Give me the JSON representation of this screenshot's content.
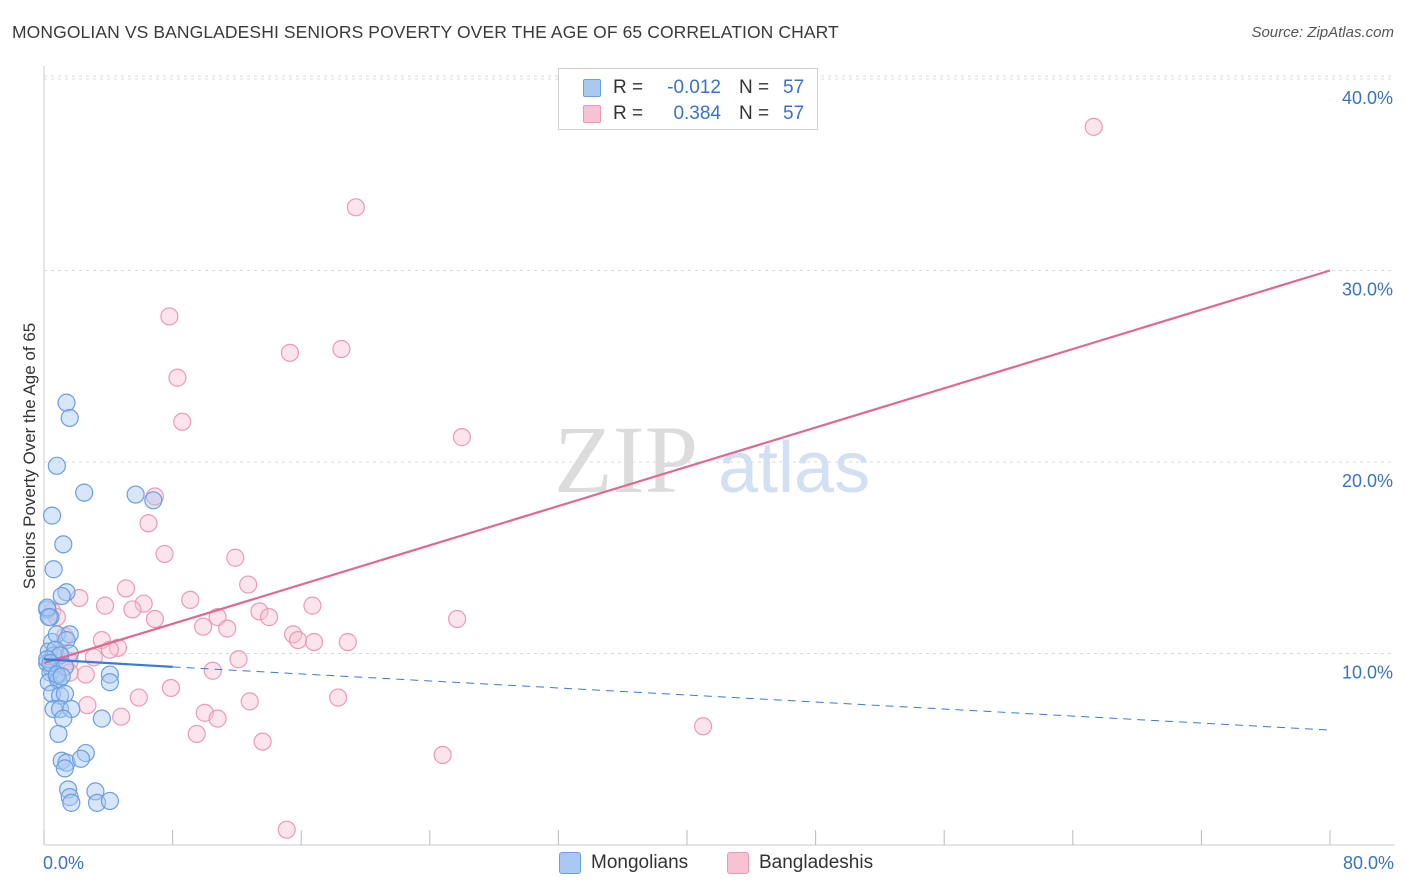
{
  "title": "MONGOLIAN VS BANGLADESHI SENIORS POVERTY OVER THE AGE OF 65 CORRELATION CHART",
  "source": "Source: ZipAtlas.com",
  "watermark": {
    "zip": "ZIP",
    "atlas": "atlas"
  },
  "colors": {
    "mongolian_fill": "#a9c8f2",
    "mongolian_stroke": "#6c9ee0",
    "mongolian_line": "#3a7bd5",
    "bangladeshi_fill": "#f7c3d2",
    "bangladeshi_stroke": "#ea9bb4",
    "bangladeshi_line": "#e06991",
    "axis_text": "#3a72c4",
    "grid": "#d8d8d8"
  },
  "legend": {
    "r_label": "R =",
    "n_label": "N =",
    "mongolians": {
      "r": "-0.012",
      "n": "57"
    },
    "bangladeshis": {
      "r": "0.384",
      "n": "57"
    }
  },
  "bottom_legend": {
    "mongolians": "Mongolians",
    "bangladeshis": "Bangladeshis"
  },
  "x_axis": {
    "min_label": "0.0%",
    "max_label": "80.0%"
  },
  "chart_data": {
    "type": "scatter",
    "title": "MONGOLIAN VS BANGLADESHI SENIORS POVERTY OVER THE AGE OF 65 CORRELATION CHART",
    "xlabel": "",
    "ylabel": "Seniors Poverty Over the Age of 65",
    "xlim": [
      0,
      80
    ],
    "ylim": [
      0,
      41
    ],
    "y_ticks": [
      10,
      20,
      30,
      40
    ],
    "y_tick_labels": [
      "10.0%",
      "20.0%",
      "30.0%",
      "40.0%"
    ],
    "x_ticks": [
      0,
      8,
      16,
      24,
      32,
      40,
      48,
      56,
      64,
      72,
      80
    ],
    "grid": true,
    "series": [
      {
        "name": "Mongolians",
        "r": -0.012,
        "n": 57,
        "trend_solid": [
          [
            0,
            9.7
          ],
          [
            8,
            9.3
          ]
        ],
        "trend_dashed": [
          [
            8,
            9.3
          ],
          [
            80,
            6.0
          ]
        ],
        "points": [
          [
            0.2,
            12.3
          ],
          [
            0.4,
            11.9
          ],
          [
            0.5,
            10.6
          ],
          [
            0.3,
            10.1
          ],
          [
            0.6,
            9.9
          ],
          [
            0.2,
            9.5
          ],
          [
            0.5,
            9.2
          ],
          [
            0.4,
            9.0
          ],
          [
            0.8,
            8.8
          ],
          [
            0.3,
            8.5
          ],
          [
            0.9,
            8.6
          ],
          [
            0.5,
            7.9
          ],
          [
            1.0,
            7.8
          ],
          [
            1.3,
            7.9
          ],
          [
            0.6,
            7.1
          ],
          [
            1.0,
            7.1
          ],
          [
            1.7,
            7.1
          ],
          [
            1.2,
            6.6
          ],
          [
            3.6,
            6.6
          ],
          [
            0.9,
            5.8
          ],
          [
            2.6,
            4.8
          ],
          [
            1.1,
            4.4
          ],
          [
            1.4,
            4.3
          ],
          [
            2.3,
            4.5
          ],
          [
            1.3,
            4.0
          ],
          [
            1.5,
            2.9
          ],
          [
            3.2,
            2.8
          ],
          [
            1.6,
            2.5
          ],
          [
            1.7,
            2.2
          ],
          [
            3.3,
            2.2
          ],
          [
            4.1,
            2.3
          ],
          [
            1.4,
            23.1
          ],
          [
            1.6,
            22.3
          ],
          [
            0.8,
            19.8
          ],
          [
            2.5,
            18.4
          ],
          [
            5.7,
            18.3
          ],
          [
            6.8,
            18.0
          ],
          [
            0.5,
            17.2
          ],
          [
            1.2,
            15.7
          ],
          [
            0.6,
            14.4
          ],
          [
            1.4,
            13.2
          ],
          [
            1.1,
            13.0
          ],
          [
            0.2,
            12.4
          ],
          [
            0.3,
            11.9
          ],
          [
            0.8,
            11.0
          ],
          [
            1.6,
            11.0
          ],
          [
            1.4,
            10.7
          ],
          [
            0.7,
            10.2
          ],
          [
            1.6,
            10.0
          ],
          [
            1.0,
            9.9
          ],
          [
            0.2,
            9.7
          ],
          [
            0.4,
            9.5
          ],
          [
            1.3,
            9.3
          ],
          [
            0.8,
            8.9
          ],
          [
            1.1,
            8.8
          ],
          [
            4.1,
            8.9
          ],
          [
            4.1,
            8.5
          ]
        ]
      },
      {
        "name": "Bangladeshis",
        "r": 0.384,
        "n": 57,
        "trend": [
          [
            0,
            9.5
          ],
          [
            80,
            30.0
          ]
        ],
        "points": [
          [
            65.3,
            37.5
          ],
          [
            19.4,
            33.3
          ],
          [
            7.8,
            27.6
          ],
          [
            18.5,
            25.9
          ],
          [
            15.3,
            25.7
          ],
          [
            8.3,
            24.4
          ],
          [
            8.6,
            22.1
          ],
          [
            26.0,
            21.3
          ],
          [
            6.9,
            18.2
          ],
          [
            6.5,
            16.8
          ],
          [
            7.5,
            15.2
          ],
          [
            11.9,
            15.0
          ],
          [
            12.7,
            13.6
          ],
          [
            5.1,
            13.4
          ],
          [
            2.2,
            12.9
          ],
          [
            9.1,
            12.8
          ],
          [
            6.2,
            12.6
          ],
          [
            16.7,
            12.5
          ],
          [
            3.8,
            12.5
          ],
          [
            5.5,
            12.3
          ],
          [
            13.4,
            12.2
          ],
          [
            0.5,
            12.2
          ],
          [
            0.8,
            11.9
          ],
          [
            6.9,
            11.8
          ],
          [
            10.8,
            11.9
          ],
          [
            14.0,
            11.9
          ],
          [
            25.7,
            11.8
          ],
          [
            9.9,
            11.4
          ],
          [
            11.4,
            11.3
          ],
          [
            15.5,
            11.0
          ],
          [
            1.3,
            10.9
          ],
          [
            3.6,
            10.7
          ],
          [
            15.8,
            10.7
          ],
          [
            16.8,
            10.6
          ],
          [
            18.9,
            10.6
          ],
          [
            4.6,
            10.3
          ],
          [
            4.1,
            10.2
          ],
          [
            1.0,
            10.0
          ],
          [
            3.1,
            9.8
          ],
          [
            12.1,
            9.7
          ],
          [
            1.6,
            9.6
          ],
          [
            10.5,
            9.1
          ],
          [
            1.6,
            9.0
          ],
          [
            2.6,
            8.9
          ],
          [
            7.9,
            8.2
          ],
          [
            18.3,
            7.7
          ],
          [
            5.9,
            7.7
          ],
          [
            12.8,
            7.5
          ],
          [
            2.7,
            7.3
          ],
          [
            10.0,
            6.9
          ],
          [
            4.8,
            6.7
          ],
          [
            10.8,
            6.6
          ],
          [
            41.0,
            6.2
          ],
          [
            9.5,
            5.8
          ],
          [
            13.6,
            5.4
          ],
          [
            24.8,
            4.7
          ],
          [
            15.1,
            0.8
          ]
        ]
      }
    ]
  }
}
